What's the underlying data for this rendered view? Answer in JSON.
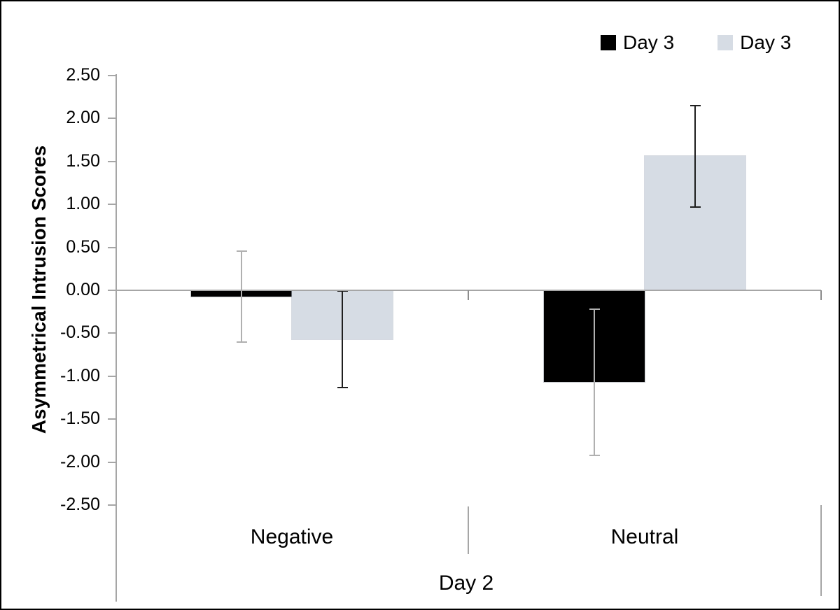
{
  "chart_data": {
    "type": "bar",
    "title": "",
    "ylabel": "Asymmetrical Intrusion Scores",
    "xlabel": "Day 2",
    "categories": [
      "Negative",
      "Neutral"
    ],
    "series": [
      {
        "name": "Day 3",
        "color": "#000000",
        "error_color": "#b0b0b0",
        "values": [
          -0.07,
          -1.07
        ],
        "errors": [
          0.53,
          0.85
        ]
      },
      {
        "name": "Day 3",
        "color": "#d6dce4",
        "error_color": "#1f1f1f",
        "values": [
          -0.57,
          1.56
        ],
        "errors": [
          0.56,
          0.59
        ]
      }
    ],
    "legend": [
      {
        "label": "Day 3",
        "color": "#000000"
      },
      {
        "label": "Day 3",
        "color": "#d6dce4"
      }
    ],
    "legend_position": "top-right",
    "ylim": [
      -2.5,
      2.5
    ],
    "ytick_step": 0.5,
    "ytick_labels": [
      "2.50",
      "2.00",
      "1.50",
      "1.00",
      "0.50",
      "0.00",
      "-0.50",
      "-1.00",
      "-1.50",
      "-2.00",
      "-2.50"
    ],
    "grid": false,
    "error_bars": true
  }
}
